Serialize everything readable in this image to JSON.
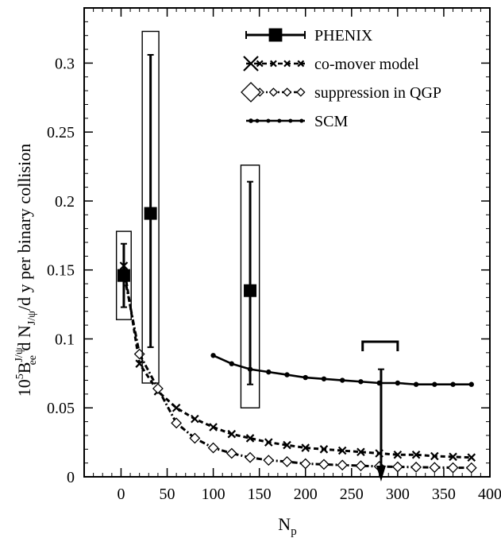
{
  "chart_data": {
    "type": "scatter",
    "xlabel": {
      "main": "N",
      "sub": "p"
    },
    "ylabel": {
      "prefix": "10",
      "prefix_sup": "5",
      "b": "B",
      "b_sub": "ee",
      "b_sup": "J/ψ",
      "mid": " d N",
      "n_sub": "J/ψ",
      "suffix": "/d y per binary collision"
    },
    "xlim": [
      -40,
      400
    ],
    "ylim": [
      0,
      0.34
    ],
    "xticks": [
      0,
      50,
      100,
      150,
      200,
      250,
      300,
      350,
      400
    ],
    "xtick_labels": [
      "0",
      "50",
      "100",
      "150",
      "200",
      "250",
      "300",
      "350",
      "400"
    ],
    "yticks": [
      0,
      0.05,
      0.1,
      0.15,
      0.2,
      0.25,
      0.3
    ],
    "ytick_labels": [
      "0",
      "0.05",
      "0.1",
      "0.15",
      "0.2",
      "0.25",
      "0.3"
    ],
    "grid": false,
    "legend_position": "top-right",
    "series": [
      {
        "name": "PHENIX",
        "marker": "filled-square",
        "points": [
          {
            "x": 3,
            "y": 0.146,
            "ylow": 0.123,
            "yhigh": 0.169,
            "sys_x": [
              -5,
              11
            ],
            "sys_y": [
              0.114,
              0.178
            ]
          },
          {
            "x": 32,
            "y": 0.191,
            "ylow": 0.094,
            "yhigh": 0.306,
            "sys_x": [
              23,
              41
            ],
            "sys_y": [
              0.068,
              0.323
            ]
          },
          {
            "x": 140,
            "y": 0.135,
            "ylow": 0.067,
            "yhigh": 0.214,
            "sys_x": [
              130,
              150
            ],
            "sys_y": [
              0.05,
              0.226
            ]
          }
        ],
        "upper_limit": {
          "x": 282,
          "from": 0.078,
          "to": 0.0,
          "bracket_x": [
            262,
            300
          ],
          "bracket_y": 0.098
        }
      },
      {
        "name": "co-mover model",
        "marker": "cross",
        "line": "dashed",
        "x": [
          3,
          20,
          40,
          60,
          80,
          100,
          120,
          140,
          160,
          180,
          200,
          220,
          240,
          260,
          280,
          300,
          320,
          340,
          360,
          380
        ],
        "y": [
          0.153,
          0.082,
          0.062,
          0.05,
          0.042,
          0.036,
          0.031,
          0.028,
          0.025,
          0.023,
          0.021,
          0.02,
          0.019,
          0.018,
          0.017,
          0.016,
          0.016,
          0.015,
          0.0145,
          0.014
        ]
      },
      {
        "name": "suppression in QGP",
        "marker": "open-diamond",
        "line": "dash-dot",
        "x": [
          3,
          20,
          40,
          60,
          80,
          100,
          120,
          140,
          160,
          180,
          200,
          220,
          240,
          260,
          280,
          300,
          320,
          340,
          360,
          380
        ],
        "y": [
          0.148,
          0.089,
          0.064,
          0.039,
          0.028,
          0.021,
          0.017,
          0.014,
          0.012,
          0.011,
          0.0095,
          0.009,
          0.0085,
          0.008,
          0.0075,
          0.0072,
          0.007,
          0.0068,
          0.0066,
          0.0065
        ]
      },
      {
        "name": "SCM",
        "marker": "small-dot",
        "line": "solid",
        "x": [
          100,
          120,
          140,
          160,
          180,
          200,
          220,
          240,
          260,
          280,
          300,
          320,
          340,
          360,
          380
        ],
        "y": [
          0.088,
          0.082,
          0.078,
          0.076,
          0.074,
          0.072,
          0.071,
          0.07,
          0.069,
          0.068,
          0.068,
          0.067,
          0.067,
          0.067,
          0.067
        ]
      }
    ]
  }
}
